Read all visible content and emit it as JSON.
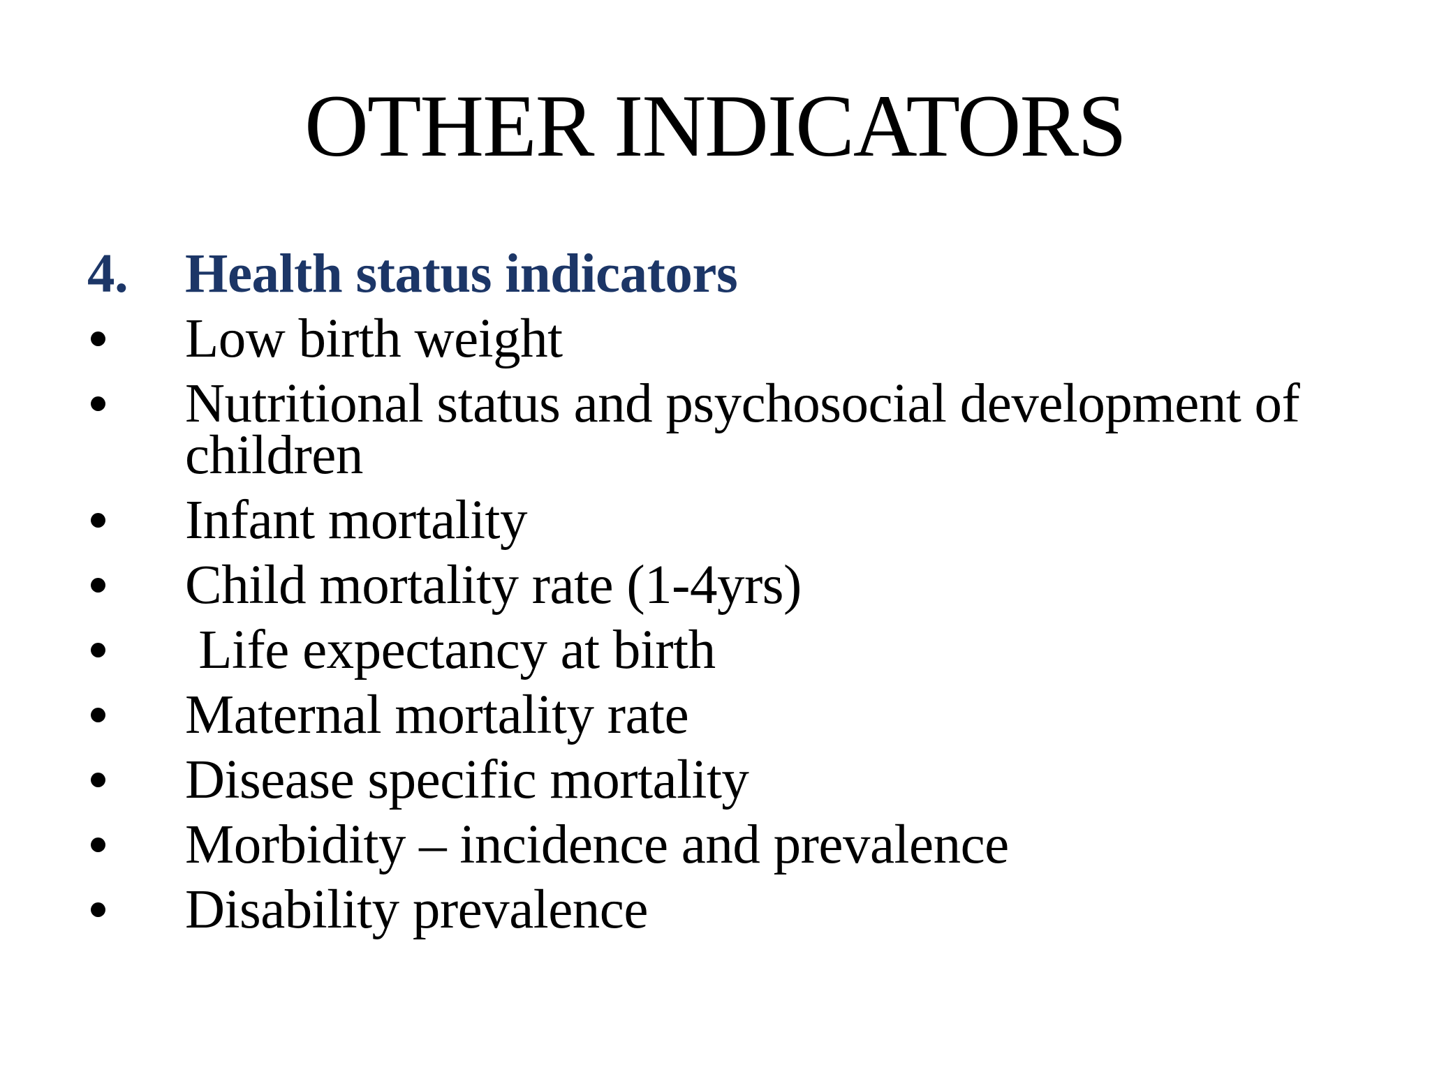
{
  "slide": {
    "title": "OTHER INDICATORS",
    "heading": {
      "number": "4.",
      "text": "Health status indicators"
    },
    "items": [
      "Low birth weight",
      "Nutritional status and psychosocial development of children",
      "Infant mortality",
      "Child mortality rate (1-4yrs)",
      " Life expectancy at birth",
      "Maternal mortality rate",
      "Disease specific mortality",
      "Morbidity – incidence and prevalence",
      "Disability prevalence"
    ],
    "bullet_glyph": "•",
    "colors": {
      "background": "#ffffff",
      "title_text": "#000000",
      "heading_text": "#1c3667",
      "body_text": "#000000",
      "bullet": "#000000"
    }
  }
}
